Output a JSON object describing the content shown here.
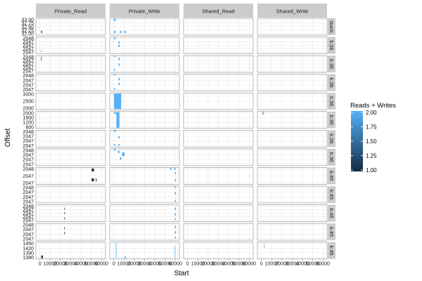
{
  "chart_data": {
    "type": "heatmap",
    "facet_cols": [
      "Private_Read",
      "Private_Write",
      "Shared_Read",
      "Shared_Write"
    ],
    "facet_rows": [
      {
        "label": "stack",
        "yticks": [
          "33.00",
          "32.75",
          "32.50",
          "32.25",
          "32.00"
        ],
        "ylim": [
          31.9,
          33.1
        ]
      },
      {
        "label": "k:36",
        "yticks": [
          "2048",
          "2047",
          "2047",
          "2047",
          "2047"
        ],
        "ylim": [
          2046.7,
          2048.2
        ]
      },
      {
        "label": "k:36",
        "yticks": [
          "2048",
          "2047",
          "2047",
          "2047",
          "2047"
        ],
        "ylim": [
          2046.7,
          2048.2
        ]
      },
      {
        "label": "k:36",
        "yticks": [
          "2048",
          "2047",
          "2047",
          "2047"
        ],
        "ylim": [
          2046.8,
          2048.2
        ]
      },
      {
        "label": "k:36",
        "yticks": [
          "3000",
          "2500",
          "2000"
        ],
        "ylim": [
          1900,
          3150
        ]
      },
      {
        "label": "k:36",
        "yticks": [
          "2000",
          "1500",
          "1200",
          "800"
        ],
        "ylim": [
          700,
          2100
        ]
      },
      {
        "label": "k:36",
        "yticks": [
          "2048",
          "2047",
          "2047",
          "2047"
        ],
        "ylim": [
          2046.8,
          2048.2
        ]
      },
      {
        "label": "k:36",
        "yticks": [
          "2048",
          "2047",
          "2047",
          "2047"
        ],
        "ylim": [
          2046.8,
          2048.2
        ]
      },
      {
        "label": "k:45",
        "yticks": [
          "2048",
          "2047",
          "2047"
        ],
        "ylim": [
          2046.6,
          2048.3
        ]
      },
      {
        "label": "k:45",
        "yticks": [
          "2048",
          "2047",
          "2047",
          "2047"
        ],
        "ylim": [
          2046.8,
          2048.2
        ]
      },
      {
        "label": "k:45",
        "yticks": [
          "2048",
          "2047",
          "2047",
          "2047",
          "2047"
        ],
        "ylim": [
          2046.7,
          2048.2
        ]
      },
      {
        "label": "k:45",
        "yticks": [
          "2048",
          "2047",
          "2047",
          "2047"
        ],
        "ylim": [
          2046.8,
          2048.2
        ]
      },
      {
        "label": "k:45",
        "yticks": [
          "1450",
          "1420",
          "1390",
          "1380"
        ],
        "ylim": [
          1375,
          1460
        ]
      }
    ],
    "xlabel": "Start",
    "ylabel": "Offset",
    "xlim": [
      -4000,
      64000
    ],
    "xticks": [
      0,
      10000,
      20000,
      30000,
      40000,
      50000,
      60000
    ],
    "xtick_labels": [
      "0",
      "10000",
      "20000",
      "30000",
      "40000",
      "50000",
      "60000"
    ],
    "legend": {
      "title": "Reads + Writes",
      "range": [
        1.0,
        2.0
      ],
      "ticks": [
        "2.00",
        "1.75",
        "1.50",
        "1.25",
        "1.00"
      ],
      "low_color": "#132b43",
      "high_color": "#56b1f7",
      "position": "right"
    },
    "tiles": [
      {
        "row": 0,
        "col": 0,
        "x": 1200,
        "w": 900,
        "y": 32.05,
        "h": 0.15,
        "v": 1.0
      },
      {
        "row": 0,
        "col": 1,
        "x": 200,
        "w": 1500,
        "y": 32.9,
        "h": 0.2,
        "v": 2.0
      },
      {
        "row": 0,
        "col": 1,
        "x": 200,
        "w": 1500,
        "y": 32.05,
        "h": 0.15,
        "v": 2.0
      },
      {
        "row": 0,
        "col": 1,
        "x": 6000,
        "w": 1500,
        "y": 32.05,
        "h": 0.15,
        "v": 2.0
      },
      {
        "row": 0,
        "col": 1,
        "x": 10000,
        "w": 1500,
        "y": 32.05,
        "h": 0.15,
        "v": 2.0
      },
      {
        "row": 1,
        "col": 0,
        "x": 1200,
        "w": 300,
        "y": 2046.85,
        "h": 0.1,
        "v": 1.25
      },
      {
        "row": 1,
        "col": 1,
        "x": 200,
        "w": 1500,
        "y": 2048.0,
        "h": 0.15,
        "v": 2.0
      },
      {
        "row": 1,
        "col": 1,
        "x": 4500,
        "w": 1300,
        "y": 2047.6,
        "h": 0.2,
        "v": 2.0
      },
      {
        "row": 1,
        "col": 1,
        "x": 4500,
        "w": 1300,
        "y": 2047.3,
        "h": 0.2,
        "v": 2.0
      },
      {
        "row": 2,
        "col": 0,
        "x": 1100,
        "w": 300,
        "y": 2047.75,
        "h": 0.35,
        "v": 1.25
      },
      {
        "row": 2,
        "col": 1,
        "x": 200,
        "w": 1500,
        "y": 2048.1,
        "h": 0.15,
        "v": 2.0
      },
      {
        "row": 2,
        "col": 1,
        "x": 4500,
        "w": 1300,
        "y": 2047.8,
        "h": 0.2,
        "v": 2.0
      },
      {
        "row": 2,
        "col": 1,
        "x": 4500,
        "w": 1300,
        "y": 2047.3,
        "h": 0.2,
        "v": 2.0
      },
      {
        "row": 2,
        "col": 1,
        "x": 200,
        "w": 1200,
        "y": 2046.85,
        "h": 0.15,
        "v": 2.0
      },
      {
        "row": 3,
        "col": 1,
        "x": 200,
        "w": 1500,
        "y": 2048.1,
        "h": 0.15,
        "v": 2.0
      },
      {
        "row": 3,
        "col": 1,
        "x": 4500,
        "w": 1300,
        "y": 2047.7,
        "h": 0.2,
        "v": 2.0
      },
      {
        "row": 3,
        "col": 1,
        "x": 4500,
        "w": 1300,
        "y": 2047.3,
        "h": 0.2,
        "v": 2.0
      },
      {
        "row": 3,
        "col": 1,
        "x": 200,
        "w": 1200,
        "y": 2046.9,
        "h": 0.15,
        "v": 2.0
      },
      {
        "row": 4,
        "col": 1,
        "x": 200,
        "w": 7000,
        "y": 1950,
        "h": 1150,
        "v": 2.0
      },
      {
        "row": 5,
        "col": 1,
        "x": 200,
        "w": 2000,
        "y": 1900,
        "h": 150,
        "v": 2.0
      },
      {
        "row": 5,
        "col": 1,
        "x": 2500,
        "w": 3000,
        "y": 750,
        "h": 1300,
        "v": 2.0
      },
      {
        "row": 5,
        "col": 3,
        "x": 1000,
        "w": 1400,
        "y": 1850,
        "h": 200,
        "v": 2.0
      },
      {
        "row": 6,
        "col": 1,
        "x": 200,
        "w": 1500,
        "y": 2048.05,
        "h": 0.15,
        "v": 2.0
      },
      {
        "row": 6,
        "col": 1,
        "x": 4500,
        "w": 1300,
        "y": 2047.5,
        "h": 0.2,
        "v": 2.0
      },
      {
        "row": 6,
        "col": 1,
        "x": 200,
        "w": 1200,
        "y": 2046.9,
        "h": 0.15,
        "v": 2.0
      },
      {
        "row": 6,
        "col": 1,
        "x": 4500,
        "w": 1300,
        "y": 2046.9,
        "h": 0.15,
        "v": 2.0
      },
      {
        "row": 7,
        "col": 1,
        "x": 200,
        "w": 1500,
        "y": 2048.05,
        "h": 0.15,
        "v": 2.0
      },
      {
        "row": 7,
        "col": 1,
        "x": 4000,
        "w": 1500,
        "y": 2047.85,
        "h": 0.2,
        "v": 2.0
      },
      {
        "row": 7,
        "col": 1,
        "x": 8000,
        "w": 2500,
        "y": 2047.6,
        "h": 0.3,
        "v": 2.0
      },
      {
        "row": 7,
        "col": 1,
        "x": 6000,
        "w": 1500,
        "y": 2047.3,
        "h": 0.2,
        "v": 2.0
      },
      {
        "row": 8,
        "col": 0,
        "x": 50500,
        "w": 2200,
        "y": 2047.9,
        "h": 0.3,
        "v": 1.0
      },
      {
        "row": 8,
        "col": 0,
        "x": 50500,
        "w": 2200,
        "y": 2046.9,
        "h": 0.3,
        "v": 1.0
      },
      {
        "row": 8,
        "col": 0,
        "x": 54500,
        "w": 800,
        "y": 2046.9,
        "h": 0.3,
        "v": 1.25
      },
      {
        "row": 8,
        "col": 1,
        "x": 55000,
        "w": 1200,
        "y": 2048.05,
        "h": 0.2,
        "v": 2.0
      },
      {
        "row": 8,
        "col": 1,
        "x": 59000,
        "w": 1200,
        "y": 2048.05,
        "h": 0.2,
        "v": 2.0
      },
      {
        "row": 8,
        "col": 1,
        "x": 59500,
        "w": 1200,
        "y": 2047.65,
        "h": 0.2,
        "v": 2.0
      },
      {
        "row": 8,
        "col": 1,
        "x": 59500,
        "w": 1200,
        "y": 2046.9,
        "h": 0.2,
        "v": 2.0
      },
      {
        "row": 9,
        "col": 1,
        "x": 59500,
        "w": 1200,
        "y": 2048.05,
        "h": 0.2,
        "v": 2.0
      },
      {
        "row": 9,
        "col": 1,
        "x": 59500,
        "w": 1200,
        "y": 2047.5,
        "h": 0.2,
        "v": 2.0
      },
      {
        "row": 9,
        "col": 1,
        "x": 59500,
        "w": 1200,
        "y": 2046.9,
        "h": 0.15,
        "v": 2.0
      },
      {
        "row": 10,
        "col": 0,
        "x": 23800,
        "w": 500,
        "y": 2047.75,
        "h": 0.2,
        "v": 1.0
      },
      {
        "row": 10,
        "col": 0,
        "x": 23800,
        "w": 500,
        "y": 2047.35,
        "h": 0.2,
        "v": 1.0
      },
      {
        "row": 10,
        "col": 0,
        "x": 23800,
        "w": 500,
        "y": 2046.9,
        "h": 0.2,
        "v": 1.0
      },
      {
        "row": 10,
        "col": 1,
        "x": 59500,
        "w": 1200,
        "y": 2047.75,
        "h": 0.2,
        "v": 2.0
      },
      {
        "row": 10,
        "col": 1,
        "x": 59500,
        "w": 1200,
        "y": 2047.25,
        "h": 0.2,
        "v": 2.0
      },
      {
        "row": 10,
        "col": 1,
        "x": 59500,
        "w": 1200,
        "y": 2046.85,
        "h": 0.15,
        "v": 2.0
      },
      {
        "row": 11,
        "col": 0,
        "x": 23800,
        "w": 500,
        "y": 2047.7,
        "h": 0.2,
        "v": 1.0
      },
      {
        "row": 11,
        "col": 0,
        "x": 23800,
        "w": 500,
        "y": 2047.3,
        "h": 0.2,
        "v": 1.0
      },
      {
        "row": 11,
        "col": 1,
        "x": 59500,
        "w": 1200,
        "y": 2047.8,
        "h": 0.2,
        "v": 2.0
      },
      {
        "row": 11,
        "col": 1,
        "x": 59500,
        "w": 1200,
        "y": 2047.35,
        "h": 0.2,
        "v": 2.0
      },
      {
        "row": 11,
        "col": 1,
        "x": 59500,
        "w": 1200,
        "y": 2046.95,
        "h": 0.15,
        "v": 2.0
      },
      {
        "row": 12,
        "col": 0,
        "x": 1200,
        "w": 1700,
        "y": 1382,
        "h": 10,
        "v": 1.0
      },
      {
        "row": 12,
        "col": 0,
        "x": 1200,
        "w": 1700,
        "y": 1377,
        "h": 4,
        "v": 1.25
      },
      {
        "row": 12,
        "col": 1,
        "x": 2000,
        "w": 400,
        "y": 1380,
        "h": 80,
        "v": 2.0
      },
      {
        "row": 12,
        "col": 1,
        "x": 10500,
        "w": 1500,
        "y": 1380,
        "h": 8,
        "v": 2.0
      },
      {
        "row": 12,
        "col": 1,
        "x": 59500,
        "w": 400,
        "y": 1380,
        "h": 60,
        "v": 2.0
      },
      {
        "row": 12,
        "col": 3,
        "x": 2400,
        "w": 400,
        "y": 1430,
        "h": 20,
        "v": 2.0
      }
    ]
  }
}
